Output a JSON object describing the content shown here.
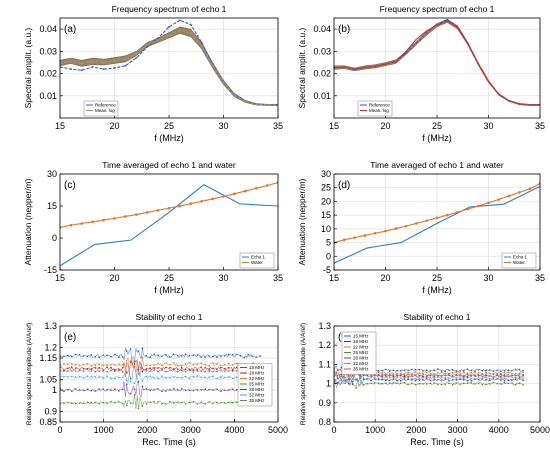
{
  "figure": {
    "panels": [
      "(a)",
      "(b)",
      "(c)",
      "(d)",
      "(e)",
      "(f)"
    ],
    "titles": {
      "a": "Frequency spectrum of echo 1",
      "b": "Frequency spectrum of echo 1",
      "c": "Time averaged of echo 1 and water",
      "d": "Time averaged of echo 1 and water",
      "e": "Stability of echo 1",
      "f": "Stability of echo 1"
    }
  },
  "chart_data": [
    {
      "id": "a",
      "type": "line",
      "panel_label": "(a)",
      "title": "Frequency spectrum of echo 1",
      "xlabel": "f (MHz)",
      "ylabel": "Spectral amplit. (a.u.)",
      "xlim": [
        15,
        35
      ],
      "ylim": [
        0,
        0.045
      ],
      "xticks": [
        15,
        20,
        25,
        30,
        35
      ],
      "yticks": [
        0.01,
        0.02,
        0.03,
        0.04
      ],
      "grid": true,
      "legend": "bottom-left",
      "band": {
        "x": [
          15,
          16,
          17,
          18,
          19,
          20,
          21,
          22,
          23,
          24,
          25,
          26,
          27,
          28,
          29,
          30,
          31,
          32,
          33,
          34,
          35
        ],
        "upper": [
          0.026,
          0.027,
          0.026,
          0.027,
          0.0265,
          0.0272,
          0.028,
          0.03,
          0.034,
          0.036,
          0.0385,
          0.041,
          0.04,
          0.034,
          0.025,
          0.017,
          0.011,
          0.008,
          0.0065,
          0.0062,
          0.0062
        ],
        "lower": [
          0.0235,
          0.0245,
          0.0232,
          0.024,
          0.0238,
          0.0245,
          0.0252,
          0.028,
          0.032,
          0.034,
          0.036,
          0.038,
          0.0365,
          0.031,
          0.0225,
          0.015,
          0.0095,
          0.007,
          0.0058,
          0.0056,
          0.0056
        ],
        "color": "#7a5a2a"
      },
      "series": [
        {
          "name": "Reference",
          "color": "#3355cc",
          "dashed": true,
          "x": [
            15,
            16,
            17,
            18,
            19,
            20,
            21,
            22,
            23,
            24,
            25,
            26,
            27,
            28,
            29,
            30,
            31,
            32,
            33,
            34,
            35
          ],
          "y": [
            0.023,
            0.022,
            0.0215,
            0.023,
            0.022,
            0.0225,
            0.0235,
            0.027,
            0.032,
            0.036,
            0.041,
            0.044,
            0.042,
            0.034,
            0.024,
            0.016,
            0.0105,
            0.0075,
            0.0062,
            0.0058,
            0.0058
          ]
        },
        {
          "name": "Mean. log",
          "color": "#999999",
          "dashed": true,
          "x": [
            15,
            16,
            17,
            18,
            19,
            20,
            21,
            22,
            23,
            24,
            25,
            26,
            27,
            28,
            29,
            30,
            31,
            32,
            33,
            34,
            35
          ],
          "y": [
            0.0245,
            0.0255,
            0.0245,
            0.0255,
            0.025,
            0.0258,
            0.0265,
            0.029,
            0.033,
            0.035,
            0.0372,
            0.0395,
            0.0382,
            0.0325,
            0.0237,
            0.016,
            0.0102,
            0.0075,
            0.0061,
            0.0059,
            0.0059
          ]
        }
      ]
    },
    {
      "id": "b",
      "type": "line",
      "panel_label": "(b)",
      "title": "Frequency spectrum of echo 1",
      "xlabel": "f (MHz)",
      "ylabel": "Spectral amplit. (a.u.)",
      "xlim": [
        15,
        35
      ],
      "ylim": [
        0,
        0.045
      ],
      "xticks": [
        15,
        20,
        25,
        30,
        35
      ],
      "yticks": [
        0.01,
        0.02,
        0.03,
        0.04
      ],
      "grid": true,
      "legend": "bottom-left",
      "band": {
        "x": [
          15,
          16,
          17,
          18,
          19,
          20,
          21,
          22,
          23,
          24,
          25,
          26,
          27,
          28,
          29,
          30,
          31,
          32,
          33,
          34,
          35
        ],
        "upper": [
          0.0235,
          0.0235,
          0.0225,
          0.0235,
          0.024,
          0.025,
          0.0262,
          0.03,
          0.0345,
          0.039,
          0.0425,
          0.0445,
          0.0415,
          0.034,
          0.025,
          0.017,
          0.011,
          0.008,
          0.0066,
          0.0062,
          0.0062
        ],
        "lower": [
          0.0218,
          0.0222,
          0.0212,
          0.022,
          0.0225,
          0.0235,
          0.0245,
          0.0285,
          0.033,
          0.0372,
          0.041,
          0.043,
          0.04,
          0.0328,
          0.0238,
          0.016,
          0.0102,
          0.0074,
          0.006,
          0.0056,
          0.0056
        ],
        "color": "#8a6a3a"
      },
      "series": [
        {
          "name": "Reference",
          "color": "#3355cc",
          "dashed": true,
          "x": [
            15,
            16,
            17,
            18,
            19,
            20,
            21,
            22,
            23,
            24,
            25,
            26,
            27,
            28,
            29,
            30,
            31,
            32,
            33,
            34,
            35
          ],
          "y": [
            0.0225,
            0.023,
            0.022,
            0.0228,
            0.0232,
            0.0242,
            0.0252,
            0.0292,
            0.0338,
            0.0382,
            0.042,
            0.0442,
            0.041,
            0.0335,
            0.0244,
            0.0165,
            0.0106,
            0.0077,
            0.0063,
            0.0059,
            0.0059
          ]
        },
        {
          "name": "Mean. log",
          "color": "#cc3322",
          "dashed": false,
          "x": [
            15,
            16,
            17,
            18,
            19,
            20,
            21,
            22,
            23,
            24,
            25,
            26,
            27,
            28,
            29,
            30,
            31,
            32,
            33,
            34,
            35
          ],
          "y": [
            0.0228,
            0.0229,
            0.0218,
            0.0227,
            0.0233,
            0.0243,
            0.0255,
            0.03,
            0.0355,
            0.0392,
            0.0418,
            0.0436,
            0.0407,
            0.0333,
            0.0243,
            0.0164,
            0.0105,
            0.0076,
            0.0062,
            0.0058,
            0.0058
          ]
        }
      ]
    },
    {
      "id": "c",
      "type": "line",
      "panel_label": "(c)",
      "title": "Time averaged of echo 1 and water",
      "xlabel": "f (MHz)",
      "ylabel": "Attenuation (nepper/m)",
      "xlim": [
        15,
        35
      ],
      "ylim": [
        -15,
        30
      ],
      "xticks": [
        15,
        20,
        25,
        30,
        35
      ],
      "yticks": [
        -15,
        0,
        15,
        30
      ],
      "grid": false,
      "legend": "bottom-right",
      "series": [
        {
          "name": "Echo 1",
          "color": "#2f7fc1",
          "marker": false,
          "x": [
            15,
            18.2,
            21.5,
            25,
            28.2,
            31.5,
            35
          ],
          "y": [
            -13,
            -3,
            -1,
            12,
            25,
            16,
            15
          ]
        },
        {
          "name": "Water",
          "color": "#e0762b",
          "marker": true,
          "x": [
            15,
            16,
            17,
            18,
            19,
            20,
            21,
            22,
            23,
            24,
            25,
            26,
            27,
            28,
            29,
            30,
            31,
            32,
            33,
            34,
            35
          ],
          "y": [
            5,
            6,
            6.8,
            7.6,
            8.4,
            9.2,
            10.1,
            11,
            12,
            13,
            14,
            15,
            16.1,
            17.2,
            18.3,
            19.5,
            20.7,
            22,
            23.3,
            24.6,
            26
          ]
        }
      ]
    },
    {
      "id": "d",
      "type": "line",
      "panel_label": "(d)",
      "title": "Time averaged of echo 1 and water",
      "xlabel": "f (MHz)",
      "ylabel": "Attenuation (nepper/m)",
      "xlim": [
        15,
        35
      ],
      "ylim": [
        -5,
        30
      ],
      "xticks": [
        15,
        20,
        25,
        30,
        35
      ],
      "yticks": [
        -5,
        0,
        5,
        10,
        15,
        20,
        25,
        30
      ],
      "grid": true,
      "legend": "bottom-right",
      "series": [
        {
          "name": "Echo 1",
          "color": "#2f7fc1",
          "marker": false,
          "x": [
            15,
            18.2,
            21.5,
            25,
            28.2,
            31.5,
            35
          ],
          "y": [
            -2.5,
            3,
            5,
            12,
            18,
            19,
            25.5
          ]
        },
        {
          "name": "Water",
          "color": "#e0762b",
          "marker": true,
          "x": [
            15,
            16,
            17,
            18,
            19,
            20,
            21,
            22,
            23,
            24,
            25,
            26,
            27,
            28,
            29,
            30,
            31,
            32,
            33,
            34,
            35
          ],
          "y": [
            5,
            6,
            6.8,
            7.6,
            8.4,
            9.2,
            10.1,
            11,
            12,
            13,
            14,
            15,
            16.1,
            17.2,
            18.3,
            19.5,
            20.7,
            22,
            23.3,
            24.6,
            26.5
          ]
        }
      ]
    },
    {
      "id": "e",
      "type": "scatter",
      "panel_label": "(e)",
      "title": "Stability of echo 1",
      "xlabel": "Rec. Time (s)",
      "ylabel": "Relative spectral amplitude (A/Aref)",
      "xlim": [
        0,
        5000
      ],
      "ylim": [
        0.85,
        1.3
      ],
      "xticks": [
        0,
        1000,
        2000,
        3000,
        4000,
        5000
      ],
      "yticks": [
        0.85,
        0.9,
        1,
        1.05,
        1.15,
        1.2,
        1.3
      ],
      "grid": true,
      "legend": "right",
      "series": [
        {
          "name": "15 MHz",
          "color": "#1f5fbf",
          "level": 1.16,
          "spread": 0.008
        },
        {
          "name": "18 MHz",
          "color": "#b0182a",
          "level": 1.1,
          "spread": 0.008
        },
        {
          "name": "22 MHz",
          "color": "#e0762b",
          "level": 1.12,
          "spread": 0.008
        },
        {
          "name": "25 MHz",
          "color": "#4d8f2a",
          "level": 0.94,
          "spread": 0.006
        },
        {
          "name": "28 MHz",
          "color": "#6a3d9a",
          "level": 1.0,
          "spread": 0.006
        },
        {
          "name": "32 MHz",
          "color": "#35aedc",
          "level": 1.06,
          "spread": 0.006
        },
        {
          "name": "35 MHz",
          "color": "#a06a6a",
          "level": 1.09,
          "spread": 0.006
        }
      ]
    },
    {
      "id": "f",
      "type": "scatter",
      "panel_label": "(f)",
      "title": "Stability of echo 1",
      "xlabel": "Rec. Time (s)",
      "ylabel": "Relative spectral amplitude (A/Aref)",
      "xlim": [
        0,
        5000
      ],
      "ylim": [
        0.8,
        1.3
      ],
      "xticks": [
        0,
        1000,
        2000,
        3000,
        4000,
        5000
      ],
      "yticks": [
        0.8,
        0.9,
        1,
        1.1,
        1.2,
        1.3
      ],
      "grid": true,
      "legend": "top-left",
      "series": [
        {
          "name": "15 MHz",
          "color": "#1f5fbf",
          "level": 1.07,
          "spread": 0.006
        },
        {
          "name": "18 MHz",
          "color": "#b0182a",
          "level": 1.04,
          "spread": 0.006
        },
        {
          "name": "22 MHz",
          "color": "#e0762b",
          "level": 1.055,
          "spread": 0.006
        },
        {
          "name": "25 MHz",
          "color": "#4d8f2a",
          "level": 1.0,
          "spread": 0.006
        },
        {
          "name": "28 MHz",
          "color": "#6a3d9a",
          "level": 1.02,
          "spread": 0.006
        },
        {
          "name": "32 MHz",
          "color": "#35aedc",
          "level": 1.03,
          "spread": 0.006
        },
        {
          "name": "35 MHz",
          "color": "#a06a6a",
          "level": 1.045,
          "spread": 0.006
        }
      ]
    }
  ]
}
